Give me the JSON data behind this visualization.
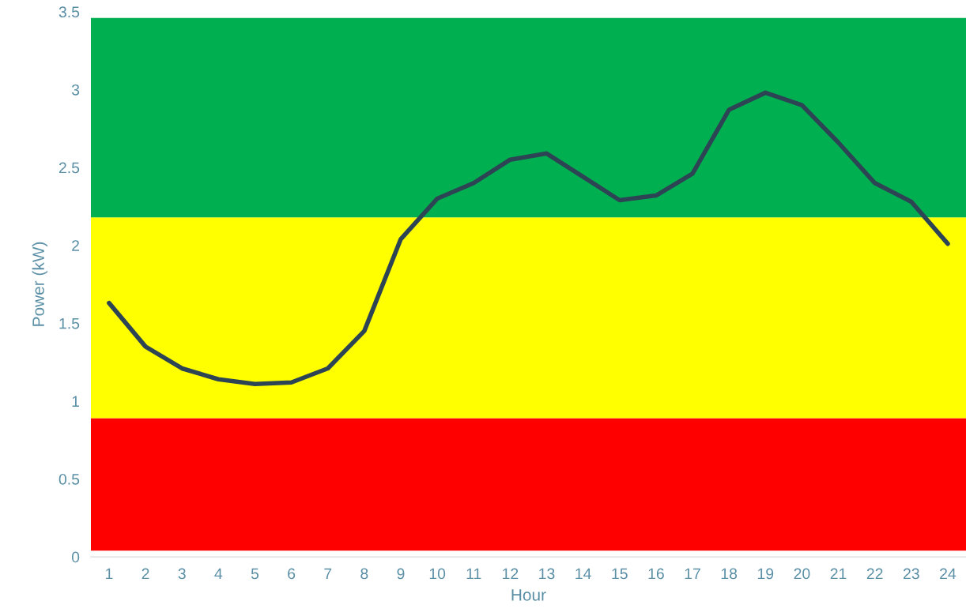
{
  "chart_data": {
    "type": "line",
    "categories": [
      "1",
      "2",
      "3",
      "4",
      "5",
      "6",
      "7",
      "8",
      "9",
      "10",
      "11",
      "12",
      "13",
      "14",
      "15",
      "16",
      "17",
      "18",
      "19",
      "20",
      "21",
      "22",
      "23",
      "24"
    ],
    "series": [
      {
        "color": "#2d4454",
        "values": [
          1.63,
          1.35,
          1.21,
          1.14,
          1.11,
          1.12,
          1.21,
          1.45,
          2.04,
          2.3,
          2.4,
          2.55,
          2.59,
          2.44,
          2.29,
          2.32,
          2.46,
          2.87,
          2.98,
          2.9,
          2.66,
          2.4,
          2.28,
          2.01
        ]
      }
    ],
    "xlabel": "Hour",
    "ylabel": "Power (kW)",
    "ylim": [
      0,
      3.5
    ],
    "yticks": [
      0,
      0.5,
      1,
      1.5,
      2,
      2.5,
      3,
      3.5
    ],
    "bands": [
      {
        "axis": "y",
        "from": 0.04,
        "to": 0.89,
        "color": "#ff0000"
      },
      {
        "axis": "y",
        "from": 0.89,
        "to": 2.18,
        "color": "#ffff00"
      },
      {
        "axis": "y",
        "from": 2.18,
        "to": 3.46,
        "color": "#00b050"
      }
    ],
    "grid": false,
    "legend": false,
    "marker": "none",
    "line_style": "solid"
  }
}
